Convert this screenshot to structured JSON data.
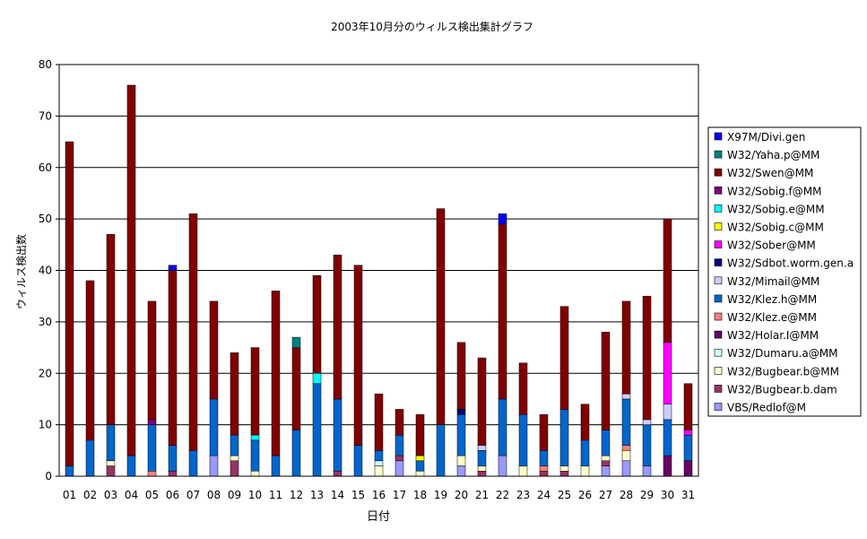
{
  "chart_data": {
    "type": "bar",
    "stacked": true,
    "title": "2003年10月分のウィルス検出集計グラフ",
    "xlabel": "日付",
    "ylabel": "ウィルス検出数",
    "ylim": [
      0,
      80
    ],
    "yticks": [
      0,
      10,
      20,
      30,
      40,
      50,
      60,
      70,
      80
    ],
    "grid": true,
    "legend_position": "right",
    "categories": [
      "01",
      "02",
      "03",
      "04",
      "05",
      "06",
      "07",
      "08",
      "09",
      "10",
      "11",
      "12",
      "13",
      "14",
      "15",
      "16",
      "17",
      "18",
      "19",
      "20",
      "21",
      "22",
      "23",
      "24",
      "25",
      "26",
      "27",
      "28",
      "29",
      "30",
      "31"
    ],
    "series": [
      {
        "name": "VBS/Redlof@M",
        "color": "#9999ff",
        "values": [
          0,
          0,
          0,
          0,
          0,
          0,
          0,
          4,
          0,
          0,
          0,
          0,
          0,
          0,
          0,
          0,
          3,
          0,
          0,
          2,
          0,
          4,
          0,
          0,
          0,
          0,
          2,
          3,
          2,
          0,
          0
        ]
      },
      {
        "name": "W32/Bugbear.b.dam",
        "color": "#993366",
        "values": [
          0,
          0,
          2,
          0,
          0,
          1,
          0,
          0,
          3,
          0,
          0,
          0,
          0,
          1,
          0,
          0,
          1,
          0,
          0,
          0,
          1,
          0,
          0,
          1,
          1,
          0,
          1,
          0,
          0,
          0,
          0
        ]
      },
      {
        "name": "W32/Bugbear.b@MM",
        "color": "#ffffcc",
        "values": [
          0,
          0,
          1,
          0,
          0,
          0,
          0,
          0,
          1,
          1,
          0,
          0,
          0,
          0,
          0,
          2,
          0,
          1,
          0,
          2,
          1,
          0,
          2,
          0,
          1,
          2,
          1,
          2,
          0,
          0,
          0
        ]
      },
      {
        "name": "W32/Dumaru.a@MM",
        "color": "#ccffff",
        "values": [
          0,
          0,
          0,
          0,
          0,
          0,
          0,
          0,
          0,
          0,
          0,
          0,
          0,
          0,
          0,
          1,
          0,
          0,
          0,
          0,
          0,
          0,
          0,
          0,
          0,
          0,
          0,
          0,
          0,
          0,
          0
        ]
      },
      {
        "name": "W32/Holar.I@MM",
        "color": "#660066",
        "values": [
          0,
          0,
          0,
          0,
          0,
          0,
          0,
          0,
          0,
          0,
          0,
          0,
          0,
          0,
          0,
          0,
          0,
          0,
          0,
          0,
          0,
          0,
          0,
          0,
          0,
          0,
          0,
          0,
          0,
          4,
          3
        ]
      },
      {
        "name": "W32/Klez.e@MM",
        "color": "#ff8080",
        "values": [
          0,
          0,
          0,
          0,
          1,
          0,
          0,
          0,
          0,
          0,
          0,
          0,
          0,
          0,
          0,
          0,
          0,
          0,
          0,
          0,
          0,
          0,
          0,
          1,
          0,
          0,
          0,
          1,
          0,
          0,
          0
        ]
      },
      {
        "name": "W32/Klez.h@MM",
        "color": "#0066cc",
        "values": [
          2,
          7,
          7,
          4,
          9,
          5,
          5,
          11,
          4,
          6,
          4,
          9,
          18,
          14,
          6,
          2,
          4,
          2,
          10,
          8,
          3,
          11,
          10,
          3,
          11,
          5,
          5,
          9,
          8,
          7,
          5
        ]
      },
      {
        "name": "W32/Mimail@MM",
        "color": "#ccccff",
        "values": [
          0,
          0,
          0,
          0,
          0,
          0,
          0,
          0,
          0,
          0,
          0,
          0,
          0,
          0,
          0,
          0,
          0,
          0,
          0,
          0,
          1,
          0,
          0,
          0,
          0,
          0,
          0,
          1,
          1,
          3,
          0
        ]
      },
      {
        "name": "W32/Sdbot.worm.gen.a",
        "color": "#000080",
        "values": [
          0,
          0,
          0,
          0,
          0,
          0,
          0,
          0,
          0,
          0,
          0,
          0,
          0,
          0,
          0,
          0,
          0,
          0,
          0,
          1,
          0,
          0,
          0,
          0,
          0,
          0,
          0,
          0,
          0,
          0,
          0
        ]
      },
      {
        "name": "W32/Sober@MM",
        "color": "#ff00ff",
        "values": [
          0,
          0,
          0,
          0,
          0,
          0,
          0,
          0,
          0,
          0,
          0,
          0,
          0,
          0,
          0,
          0,
          0,
          0,
          0,
          0,
          0,
          0,
          0,
          0,
          0,
          0,
          0,
          0,
          0,
          12,
          1
        ]
      },
      {
        "name": "W32/Sobig.c@MM",
        "color": "#ffff00",
        "values": [
          0,
          0,
          0,
          0,
          0,
          0,
          0,
          0,
          0,
          0,
          0,
          0,
          0,
          0,
          0,
          0,
          0,
          1,
          0,
          0,
          0,
          0,
          0,
          0,
          0,
          0,
          0,
          0,
          0,
          0,
          0
        ]
      },
      {
        "name": "W32/Sobig.e@MM",
        "color": "#00ffff",
        "values": [
          0,
          0,
          0,
          0,
          0,
          0,
          0,
          0,
          0,
          1,
          0,
          0,
          2,
          0,
          0,
          0,
          0,
          0,
          0,
          0,
          0,
          0,
          0,
          0,
          0,
          0,
          0,
          0,
          0,
          0,
          0
        ]
      },
      {
        "name": "W32/Sobig.f@MM",
        "color": "#800080",
        "values": [
          0,
          0,
          0,
          0,
          1,
          0,
          0,
          0,
          0,
          0,
          0,
          0,
          0,
          0,
          0,
          0,
          0,
          0,
          0,
          0,
          0,
          0,
          0,
          0,
          0,
          0,
          0,
          0,
          0,
          0,
          0
        ]
      },
      {
        "name": "W32/Swen@MM",
        "color": "#800000",
        "values": [
          63,
          31,
          37,
          72,
          23,
          34,
          46,
          19,
          16,
          17,
          32,
          16,
          19,
          28,
          35,
          11,
          5,
          8,
          42,
          13,
          17,
          34,
          10,
          7,
          20,
          7,
          19,
          18,
          24,
          24,
          9
        ]
      },
      {
        "name": "W32/Yaha.p@MM",
        "color": "#008080",
        "values": [
          0,
          0,
          0,
          0,
          0,
          0,
          0,
          0,
          0,
          0,
          0,
          2,
          0,
          0,
          0,
          0,
          0,
          0,
          0,
          0,
          0,
          0,
          0,
          0,
          0,
          0,
          0,
          0,
          0,
          0,
          0
        ]
      },
      {
        "name": "X97M/Divi.gen",
        "color": "#0000ff",
        "values": [
          0,
          0,
          0,
          0,
          0,
          1,
          0,
          0,
          0,
          0,
          0,
          0,
          0,
          0,
          0,
          0,
          0,
          0,
          0,
          0,
          0,
          2,
          0,
          0,
          0,
          0,
          0,
          0,
          0,
          0,
          0
        ]
      }
    ]
  }
}
